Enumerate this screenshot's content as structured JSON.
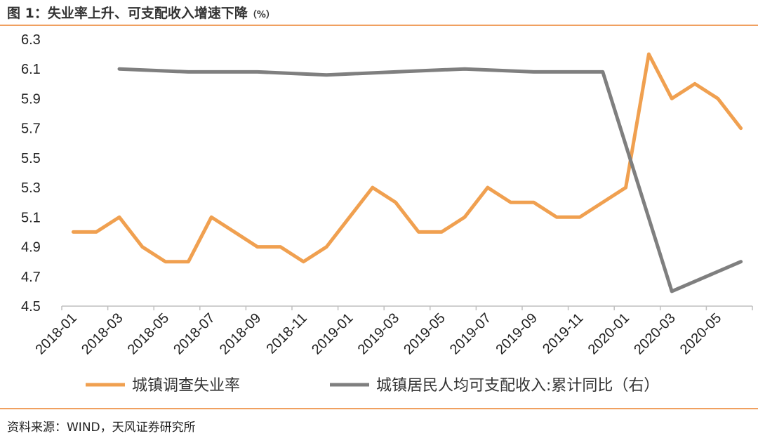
{
  "header": {
    "title": "图 1：失业率上升、可支配收入增速下降",
    "title_unit": "（%）"
  },
  "footer": {
    "source": "资料来源：WIND，天风证券研究所"
  },
  "chart_data": {
    "type": "line",
    "x": [
      "2018-01",
      "2018-02",
      "2018-03",
      "2018-04",
      "2018-05",
      "2018-06",
      "2018-07",
      "2018-08",
      "2018-09",
      "2018-10",
      "2018-11",
      "2018-12",
      "2019-01",
      "2019-02",
      "2019-03",
      "2019-04",
      "2019-05",
      "2019-06",
      "2019-07",
      "2019-08",
      "2019-09",
      "2019-10",
      "2019-11",
      "2019-12",
      "2020-01",
      "2020-02",
      "2020-03",
      "2020-04",
      "2020-05",
      "2020-06"
    ],
    "x_tick_labels": [
      "2018-01",
      "2018-03",
      "2018-05",
      "2018-07",
      "2018-09",
      "2018-11",
      "2019-01",
      "2019-03",
      "2019-05",
      "2019-07",
      "2019-09",
      "2019-11",
      "2020-01",
      "2020-03",
      "2020-05"
    ],
    "y_ticks": [
      "4.5",
      "4.7",
      "4.9",
      "5.1",
      "5.3",
      "5.5",
      "5.7",
      "5.9",
      "6.1",
      "6.3"
    ],
    "ylim": [
      4.5,
      6.3
    ],
    "series": [
      {
        "name": "城镇调查失业率",
        "color": "#f0a050",
        "values": [
          5.0,
          5.0,
          5.1,
          4.9,
          4.8,
          4.8,
          5.1,
          5.0,
          4.9,
          4.9,
          4.8,
          4.9,
          5.1,
          5.3,
          5.2,
          5.0,
          5.0,
          5.1,
          5.3,
          5.2,
          5.2,
          5.1,
          5.1,
          5.2,
          5.3,
          6.2,
          5.9,
          6.0,
          5.9,
          5.7
        ]
      },
      {
        "name": "城镇居民人均可支配收入:累计同比（右）",
        "color": "#7f7f7f",
        "values": [
          null,
          null,
          6.1,
          null,
          null,
          6.08,
          null,
          null,
          6.08,
          null,
          null,
          6.06,
          null,
          null,
          6.08,
          null,
          null,
          6.1,
          null,
          null,
          6.08,
          null,
          null,
          6.08,
          null,
          null,
          4.6,
          null,
          null,
          4.8
        ]
      }
    ],
    "legend_position": "bottom",
    "grid": false
  }
}
